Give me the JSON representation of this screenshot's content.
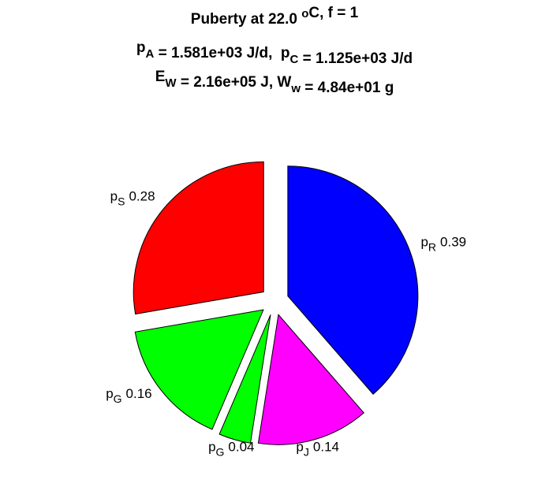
{
  "chart_data": {
    "type": "pie",
    "title_lines": [
      [
        {
          "text": "Puberty at 22.0 "
        },
        {
          "sup": "o"
        },
        {
          "text": "C, f = 1"
        }
      ],
      [
        {
          "text": "p"
        },
        {
          "sub": "A"
        },
        {
          "text": " = 1.581e+03 J/d,  p"
        },
        {
          "sub": "C"
        },
        {
          "text": " = 1.125e+03 J/d"
        }
      ],
      [
        {
          "text": "E"
        },
        {
          "sub": "W"
        },
        {
          "text": " = 2.16e+05 J, W"
        },
        {
          "sub": "w"
        },
        {
          "text": " = 4.84e+01 g"
        }
      ]
    ],
    "labels": [
      {
        "text": "p",
        "sub": "S"
      },
      {
        "text": "p",
        "sub": "G"
      },
      {
        "text": "p",
        "sub": "G"
      },
      {
        "text": "p",
        "sub": "J"
      },
      {
        "text": "p",
        "sub": "R"
      }
    ],
    "values": [
      0.28,
      0.16,
      0.04,
      0.14,
      0.39
    ],
    "colors": [
      "#ff0000",
      "#00ff00",
      "#00ff00",
      "#ff00ff",
      "#0000ff"
    ],
    "exploded": true
  }
}
